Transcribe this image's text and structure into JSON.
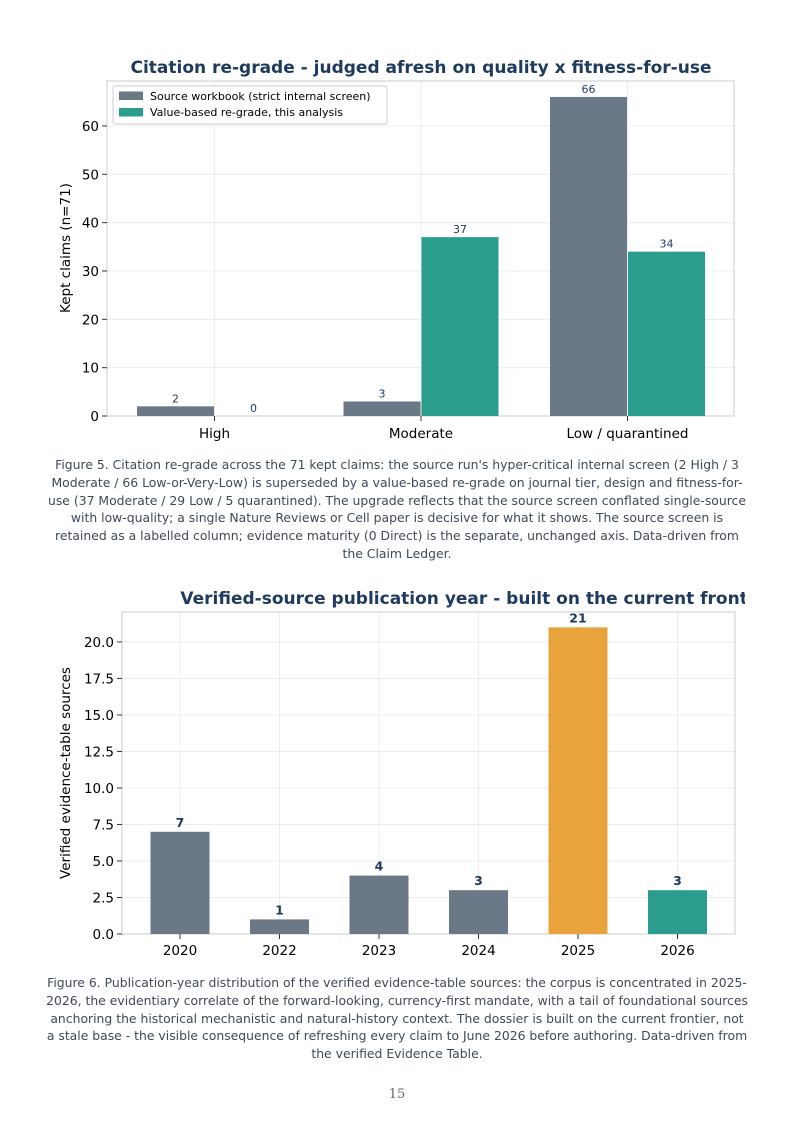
{
  "chart_data": [
    {
      "type": "bar",
      "title": "Citation re-grade - judged afresh on quality x fitness-for-use",
      "xlabel": "",
      "ylabel": "Kept claims (n=71)",
      "categories": [
        "High",
        "Moderate",
        "Low / quarantined"
      ],
      "series": [
        {
          "name": "Source workbook (strict internal screen)",
          "values": [
            2,
            3,
            66
          ],
          "color": "#6b7887"
        },
        {
          "name": "Value-based re-grade, this analysis",
          "values": [
            0,
            37,
            34
          ],
          "color": "#2a9d8f"
        }
      ],
      "ylim": [
        0,
        69.3
      ],
      "yticks": [
        "0",
        "10",
        "20",
        "30",
        "40",
        "50",
        "60"
      ],
      "grid": true,
      "legend": "top-left"
    },
    {
      "type": "bar",
      "title": "Verified-source publication year - built on the current frontier",
      "xlabel": "",
      "ylabel": "Verified evidence-table sources",
      "categories": [
        "2020",
        "2022",
        "2023",
        "2024",
        "2025",
        "2026"
      ],
      "values": [
        7,
        1,
        4,
        3,
        21,
        3
      ],
      "colors": [
        "#6b7887",
        "#6b7887",
        "#6b7887",
        "#6b7887",
        "#e8a33d",
        "#2a9d8f"
      ],
      "ylim": [
        0,
        22.05
      ],
      "yticks": [
        "0.0",
        "2.5",
        "5.0",
        "7.5",
        "10.0",
        "12.5",
        "15.0",
        "17.5",
        "20.0"
      ],
      "grid": true
    }
  ],
  "captions": {
    "fig5": "Figure 5. Citation re-grade across the 71 kept claims: the source run's hyper-critical internal screen (2 High / 3 Moderate / 66 Low-or-Very-Low) is superseded by a value-based re-grade on journal tier, design and fitness-for-use (37 Moderate / 29 Low / 5 quarantined). The upgrade reflects that the source screen conflated single-source with low-quality; a single Nature Reviews or Cell paper is decisive for what it shows. The source screen is retained as a labelled column; evidence maturity (0 Direct) is the separate, unchanged axis. Data-driven from the Claim Ledger.",
    "fig6": "Figure 6. Publication-year distribution of the verified evidence-table sources: the corpus is concentrated in 2025-2026, the evidentiary correlate of the forward-looking, currency-first mandate, with a tail of foundational sources anchoring the historical mechanistic and natural-history context. The dossier is built on the current frontier, not a stale base - the visible consequence of refreshing every claim to June 2026 before authoring. Data-driven from the verified Evidence Table."
  },
  "page_number": "15",
  "colors": {
    "title": "#1f3a5f",
    "label": "#1f3a5f",
    "grid": "#ececec",
    "frame": "#cccccc"
  }
}
